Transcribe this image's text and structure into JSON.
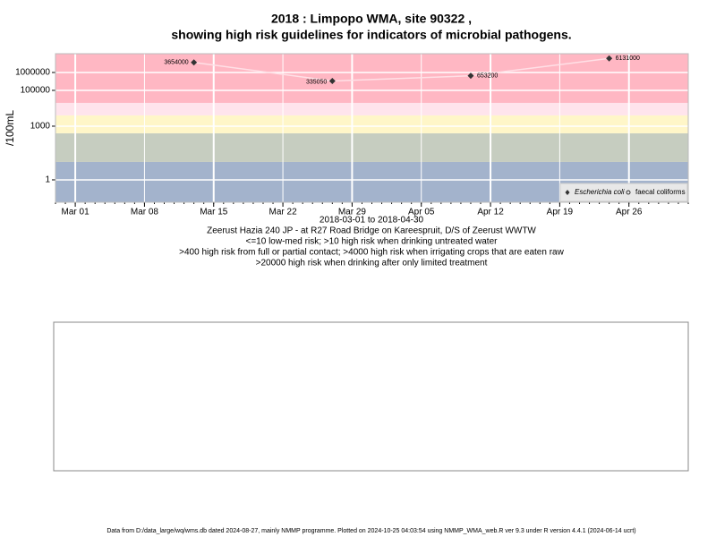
{
  "chart_data": {
    "type": "line",
    "title": "2018 : Limpopo WMA, site 90322 ,",
    "subtitle": "showing high risk guidelines for indicators of microbial pathogens.",
    "ylabel": "/100mL",
    "xlabel": "2018-03-01 to 2018-04-30",
    "notes": [
      "Zeerust Hazia 240 JP - at R27 Road Bridge on Kareespruit, D/S of Zeerust WWTW",
      "<=10 low-med risk; >10 high risk when drinking untreated water",
      ">400 high risk from full or partial contact; >4000 high risk when irrigating crops that are eaten raw",
      ">20000 high risk when drinking after only limited treatment"
    ],
    "footer": "Data from D:/data_large/wq/wms.db dated 2024-08-27, mainly NMMP programme. Plotted on 2024-10-25 04:03:54 using NMMP_WMA_web.R ver 9.3 under R version 4.4.1 (2024-06-14 ucrt)",
    "x": [
      "2018-03-13",
      "2018-03-27",
      "2018-04-10",
      "2018-04-24"
    ],
    "series": [
      {
        "name": "Escherichia coli",
        "color": "#333333",
        "values": [
          3654000,
          335050,
          653200,
          6131000
        ]
      },
      {
        "name": "faecal coliforms",
        "color": "#333333",
        "values": [
          null,
          null,
          null,
          null
        ]
      }
    ],
    "log_y": true,
    "xlim": [
      "2018-02-27",
      "2018-05-02"
    ],
    "ylim": [
      0.056,
      11200000
    ],
    "yticks": [
      1,
      1000,
      100000,
      1000000
    ],
    "xticks": [
      {
        "value": "2018-03-01",
        "label": "Mar 01"
      },
      {
        "value": "2018-03-08",
        "label": "Mar 08"
      },
      {
        "value": "2018-03-15",
        "label": "Mar 15"
      },
      {
        "value": "2018-03-22",
        "label": "Mar 22"
      },
      {
        "value": "2018-03-29",
        "label": "Mar 29"
      },
      {
        "value": "2018-04-05",
        "label": "Apr 05"
      },
      {
        "value": "2018-04-12",
        "label": "Apr 12"
      },
      {
        "value": "2018-04-19",
        "label": "Apr 19"
      },
      {
        "value": "2018-04-26",
        "label": "Apr 26"
      }
    ],
    "guidelines": [
      10,
      400,
      4000,
      20000
    ],
    "band_colors": [
      "#a3b3cc",
      "#c6cdc0",
      "#fff6c8",
      "#ffe4ec",
      "#ffb7c3"
    ],
    "line_color": "#ffe0e6",
    "legend": "bottom right"
  }
}
